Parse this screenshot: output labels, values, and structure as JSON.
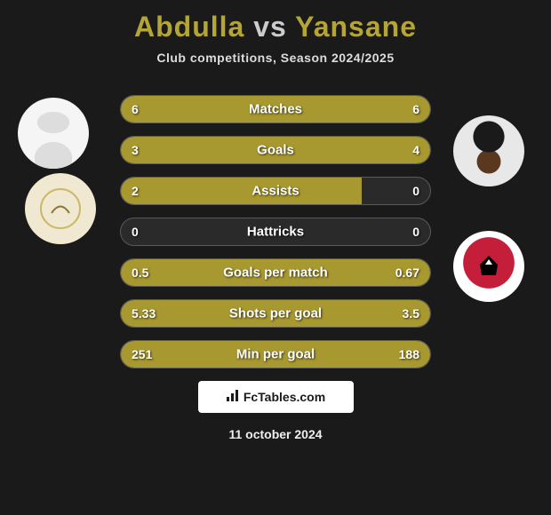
{
  "title": {
    "player1": "Abdulla",
    "vs": "vs",
    "player2": "Yansane",
    "color_main": "#b5a536",
    "color_vs": "#cccccc",
    "fontsize": 32
  },
  "subtitle": "Club competitions, Season 2024/2025",
  "background_color": "#1a1a1a",
  "bar_color": "#a89830",
  "bar_border_color": "#5a5a5a",
  "bar_bg_color": "#2a2a2a",
  "text_color": "#ffffff",
  "stats": [
    {
      "label": "Matches",
      "left_value": "6",
      "right_value": "6",
      "left_pct": 50,
      "right_pct": 50
    },
    {
      "label": "Goals",
      "left_value": "3",
      "right_value": "4",
      "left_pct": 40,
      "right_pct": 60
    },
    {
      "label": "Assists",
      "left_value": "2",
      "right_value": "0",
      "left_pct": 78,
      "right_pct": 0
    },
    {
      "label": "Hattricks",
      "left_value": "0",
      "right_value": "0",
      "left_pct": 0,
      "right_pct": 0
    },
    {
      "label": "Goals per match",
      "left_value": "0.5",
      "right_value": "0.67",
      "left_pct": 38,
      "right_pct": 62
    },
    {
      "label": "Shots per goal",
      "left_value": "5.33",
      "right_value": "3.5",
      "left_pct": 62,
      "right_pct": 38
    },
    {
      "label": "Min per goal",
      "left_value": "251",
      "right_value": "188",
      "left_pct": 62,
      "right_pct": 38
    }
  ],
  "footer": {
    "logo_text": "FcTables.com",
    "date": "11 october 2024"
  },
  "avatars": {
    "left_player_alt": "Abdulla",
    "left_club_alt": "Club badge left",
    "right_player_alt": "Yansane",
    "right_club_alt": "Club badge right"
  }
}
